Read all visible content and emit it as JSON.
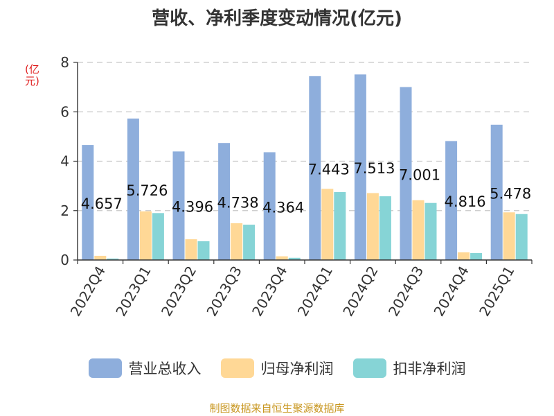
{
  "chart_data": {
    "type": "bar",
    "title": "营收、净利季度变动情况(亿元)",
    "ylabel": "(亿元)",
    "xlabel": "",
    "ylim": [
      0,
      8
    ],
    "yticks": [
      0,
      2,
      4,
      6,
      8
    ],
    "grid": true,
    "legend_position": "bottom",
    "categories": [
      "2022Q4",
      "2023Q1",
      "2023Q2",
      "2023Q3",
      "2023Q4",
      "2024Q1",
      "2024Q2",
      "2024Q3",
      "2024Q4",
      "2025Q1"
    ],
    "series": [
      {
        "name": "营业总收入",
        "color": "#8eaedc",
        "values": [
          4.657,
          5.726,
          4.396,
          4.738,
          4.364,
          7.443,
          7.513,
          7.001,
          4.816,
          5.478
        ],
        "labels": [
          "4.657",
          "5.726",
          "4.396",
          "4.738",
          "4.364",
          "7.443",
          "7.513",
          "7.001",
          "4.816",
          "5.478"
        ]
      },
      {
        "name": "归母净利润",
        "color": "#ffd896",
        "values": [
          0.17,
          1.97,
          0.84,
          1.49,
          0.15,
          2.88,
          2.71,
          2.42,
          0.31,
          1.93
        ]
      },
      {
        "name": "扣非净利润",
        "color": "#86d4d6",
        "values": [
          0.06,
          1.9,
          0.76,
          1.43,
          0.09,
          2.75,
          2.58,
          2.31,
          0.28,
          1.86
        ]
      }
    ]
  },
  "source": "制图数据来自恒生聚源数据库"
}
